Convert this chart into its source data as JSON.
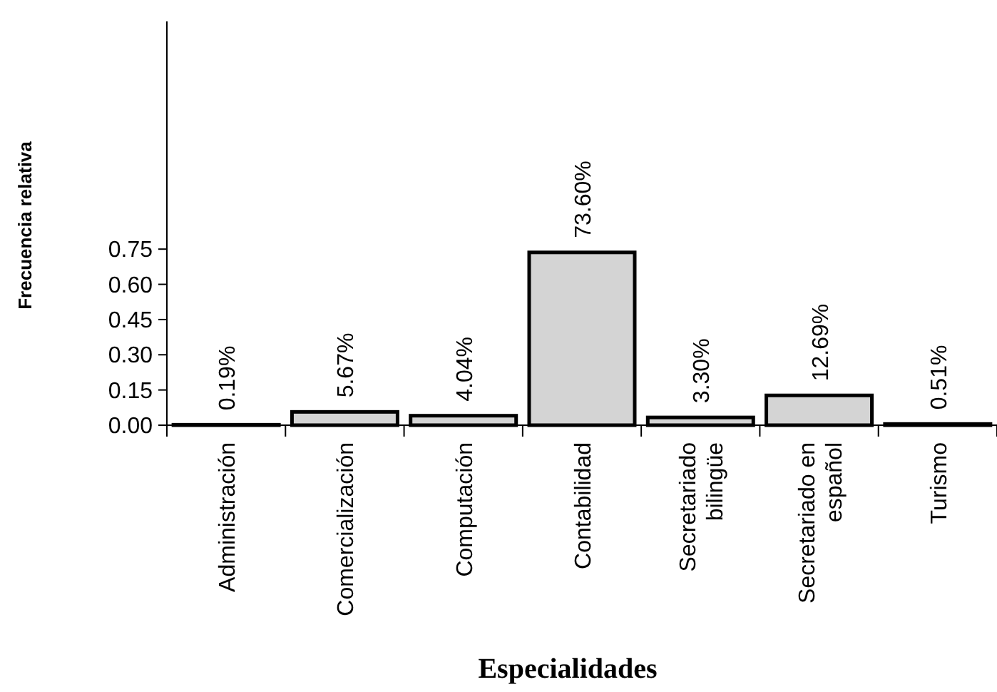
{
  "chart_data": {
    "type": "bar",
    "xlabel": "Especialidades",
    "ylabel": "Frecuencia relativa",
    "categories": [
      "Administración",
      "Comercialización",
      "Computación",
      "Contabilidad",
      "Secretariado bilingüe",
      "Secretariado en español",
      "Turismo"
    ],
    "values": [
      0.0019,
      0.0567,
      0.0404,
      0.736,
      0.033,
      0.1269,
      0.0051
    ],
    "value_labels": [
      "0.19%",
      "5.67%",
      "4.04%",
      "73.60%",
      "3.30%",
      "12.69%",
      "0.51%"
    ],
    "color": "#d4d4d4",
    "ylim": [
      0,
      1.72
    ],
    "yticks": [
      {
        "value": 0,
        "label": "0.00"
      },
      {
        "value": 0.15,
        "label": "0.15"
      },
      {
        "value": 0.3,
        "label": "0.30"
      },
      {
        "value": 0.45,
        "label": "0.45"
      },
      {
        "value": 0.6,
        "label": "0.60"
      },
      {
        "value": 0.75,
        "label": "0.75"
      }
    ],
    "grid": false
  }
}
